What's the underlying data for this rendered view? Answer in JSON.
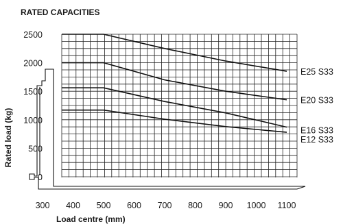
{
  "chart_data": {
    "type": "line",
    "title": "RATED CAPACITIES",
    "xlabel": "Load centre  (mm)",
    "ylabel": "Rated load  (kg)",
    "xlim": [
      300,
      1100
    ],
    "ylim": [
      0,
      2500
    ],
    "xticks": [
      300,
      400,
      500,
      600,
      700,
      800,
      900,
      1000,
      1100
    ],
    "yticks": [
      0,
      500,
      1000,
      1500,
      2000,
      2500
    ],
    "grid": true,
    "legend": "right, labels at line ends",
    "series": [
      {
        "name": "E25 S33",
        "x": [
          400,
          500,
          700,
          900,
          1100
        ],
        "y": [
          2500,
          2500,
          2250,
          2030,
          1850
        ]
      },
      {
        "name": "E20 S33",
        "x": [
          400,
          500,
          700,
          900,
          1100
        ],
        "y": [
          2000,
          2000,
          1700,
          1500,
          1350
        ]
      },
      {
        "name": "E16 S33",
        "x": [
          400,
          500,
          700,
          900,
          1100
        ],
        "y": [
          1560,
          1560,
          1320,
          1120,
          870
        ]
      },
      {
        "name": "E12 S33",
        "x": [
          400,
          500,
          700,
          900,
          1100
        ],
        "y": [
          1170,
          1170,
          1010,
          880,
          780
        ]
      }
    ]
  }
}
